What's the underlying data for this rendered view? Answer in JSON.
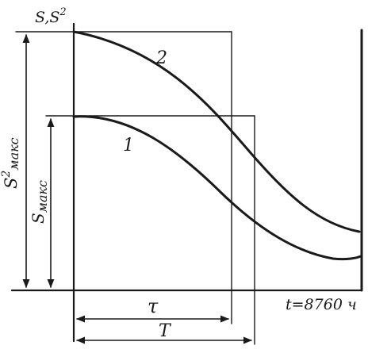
{
  "axes": {
    "y_label": "S,S",
    "y_label_superscript": "2",
    "x_label": "t=8760 ч"
  },
  "curves": [
    {
      "id": "1",
      "label": "1"
    },
    {
      "id": "2",
      "label": "2"
    }
  ],
  "dimensions": {
    "s2_max_label": "S",
    "s2_max_superscript": "2",
    "s2_max_subscript": "макс",
    "s_max_label": "S",
    "s_max_subscript": "макс",
    "tau_label": "τ",
    "T_label": "T"
  }
}
